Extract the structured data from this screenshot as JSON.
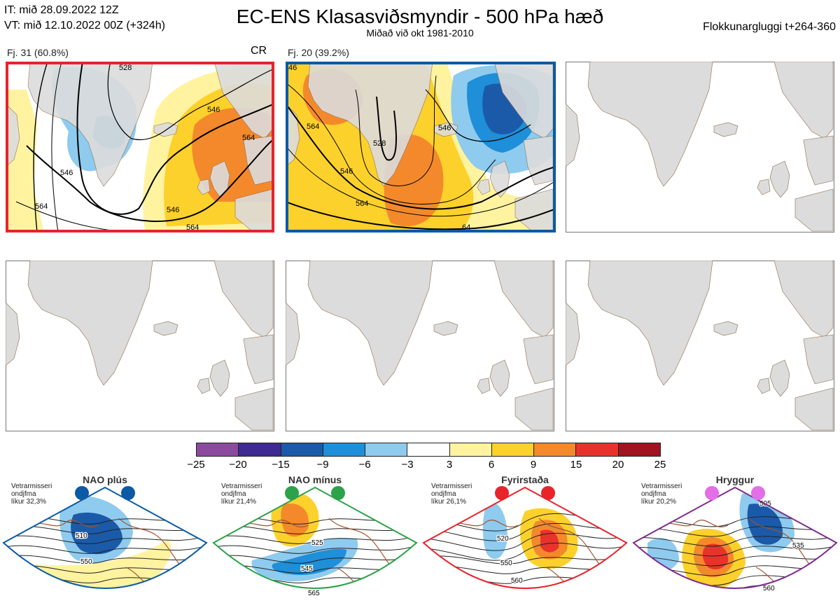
{
  "header": {
    "issue_time": "IT: mið 28.09.2022 12Z",
    "valid_time": "VT: mið 12.10.2022 00Z  (+324h)",
    "title": "EC-ENS Klasasviðsmyndir - 500 hPa hæð",
    "subtitle": "Miðað við okt 1981-2010",
    "window": "Flokkunargluggi t+264-360"
  },
  "clusters": [
    {
      "label": "Fj. 31 (60.8%)",
      "tag": "CR",
      "frame_color": "#e8232a",
      "contours": [
        "528",
        "546",
        "546",
        "564",
        "564",
        "546",
        "564"
      ]
    },
    {
      "label": "Fj. 20 (39.2%)",
      "tag": "",
      "frame_color": "#0a5aa5",
      "contours": [
        "46",
        "528",
        "546",
        "546",
        "564",
        "564",
        "64"
      ]
    }
  ],
  "colorbar": {
    "ticks": [
      "−25",
      "−20",
      "−15",
      "−9",
      "−6",
      "−3",
      "3",
      "6",
      "9",
      "15",
      "20",
      "25"
    ],
    "colors": [
      "#8b4a9e",
      "#3f2a91",
      "#1b5aa8",
      "#1e8fd8",
      "#8ecbef",
      "#ffffff",
      "#fff3a0",
      "#fdd12b",
      "#f4892c",
      "#e8332d",
      "#a01320"
    ]
  },
  "regimes": [
    {
      "name": "NAO plús",
      "note": [
        "Vetrarmisseri",
        "ondjfma",
        "líkur 32,3%"
      ],
      "color": "#0a5aa5",
      "dot_color": "#0a5aa5",
      "labels": [
        "510",
        "550"
      ]
    },
    {
      "name": "NAO mínus",
      "note": [
        "Vetrarmisseri",
        "ondjfma",
        "líkur 21,4%"
      ],
      "color": "#2ca24a",
      "dot_color": "#2ca24a",
      "labels": [
        "525",
        "545",
        "565"
      ]
    },
    {
      "name": "Fyrirstaða",
      "note": [
        "Vetrarmisseri",
        "ondjfma",
        "líkur 26,1%"
      ],
      "color": "#e8232a",
      "dot_color": "#e8232a",
      "labels": [
        "520",
        "550",
        "560"
      ]
    },
    {
      "name": "Hryggur",
      "note": [
        "Vetrarmisseri",
        "ondjfma",
        "líkur 20,2%"
      ],
      "color": "#7d2c8f",
      "dot_color": "#e46de8",
      "labels": [
        "505",
        "535",
        "560"
      ]
    }
  ]
}
